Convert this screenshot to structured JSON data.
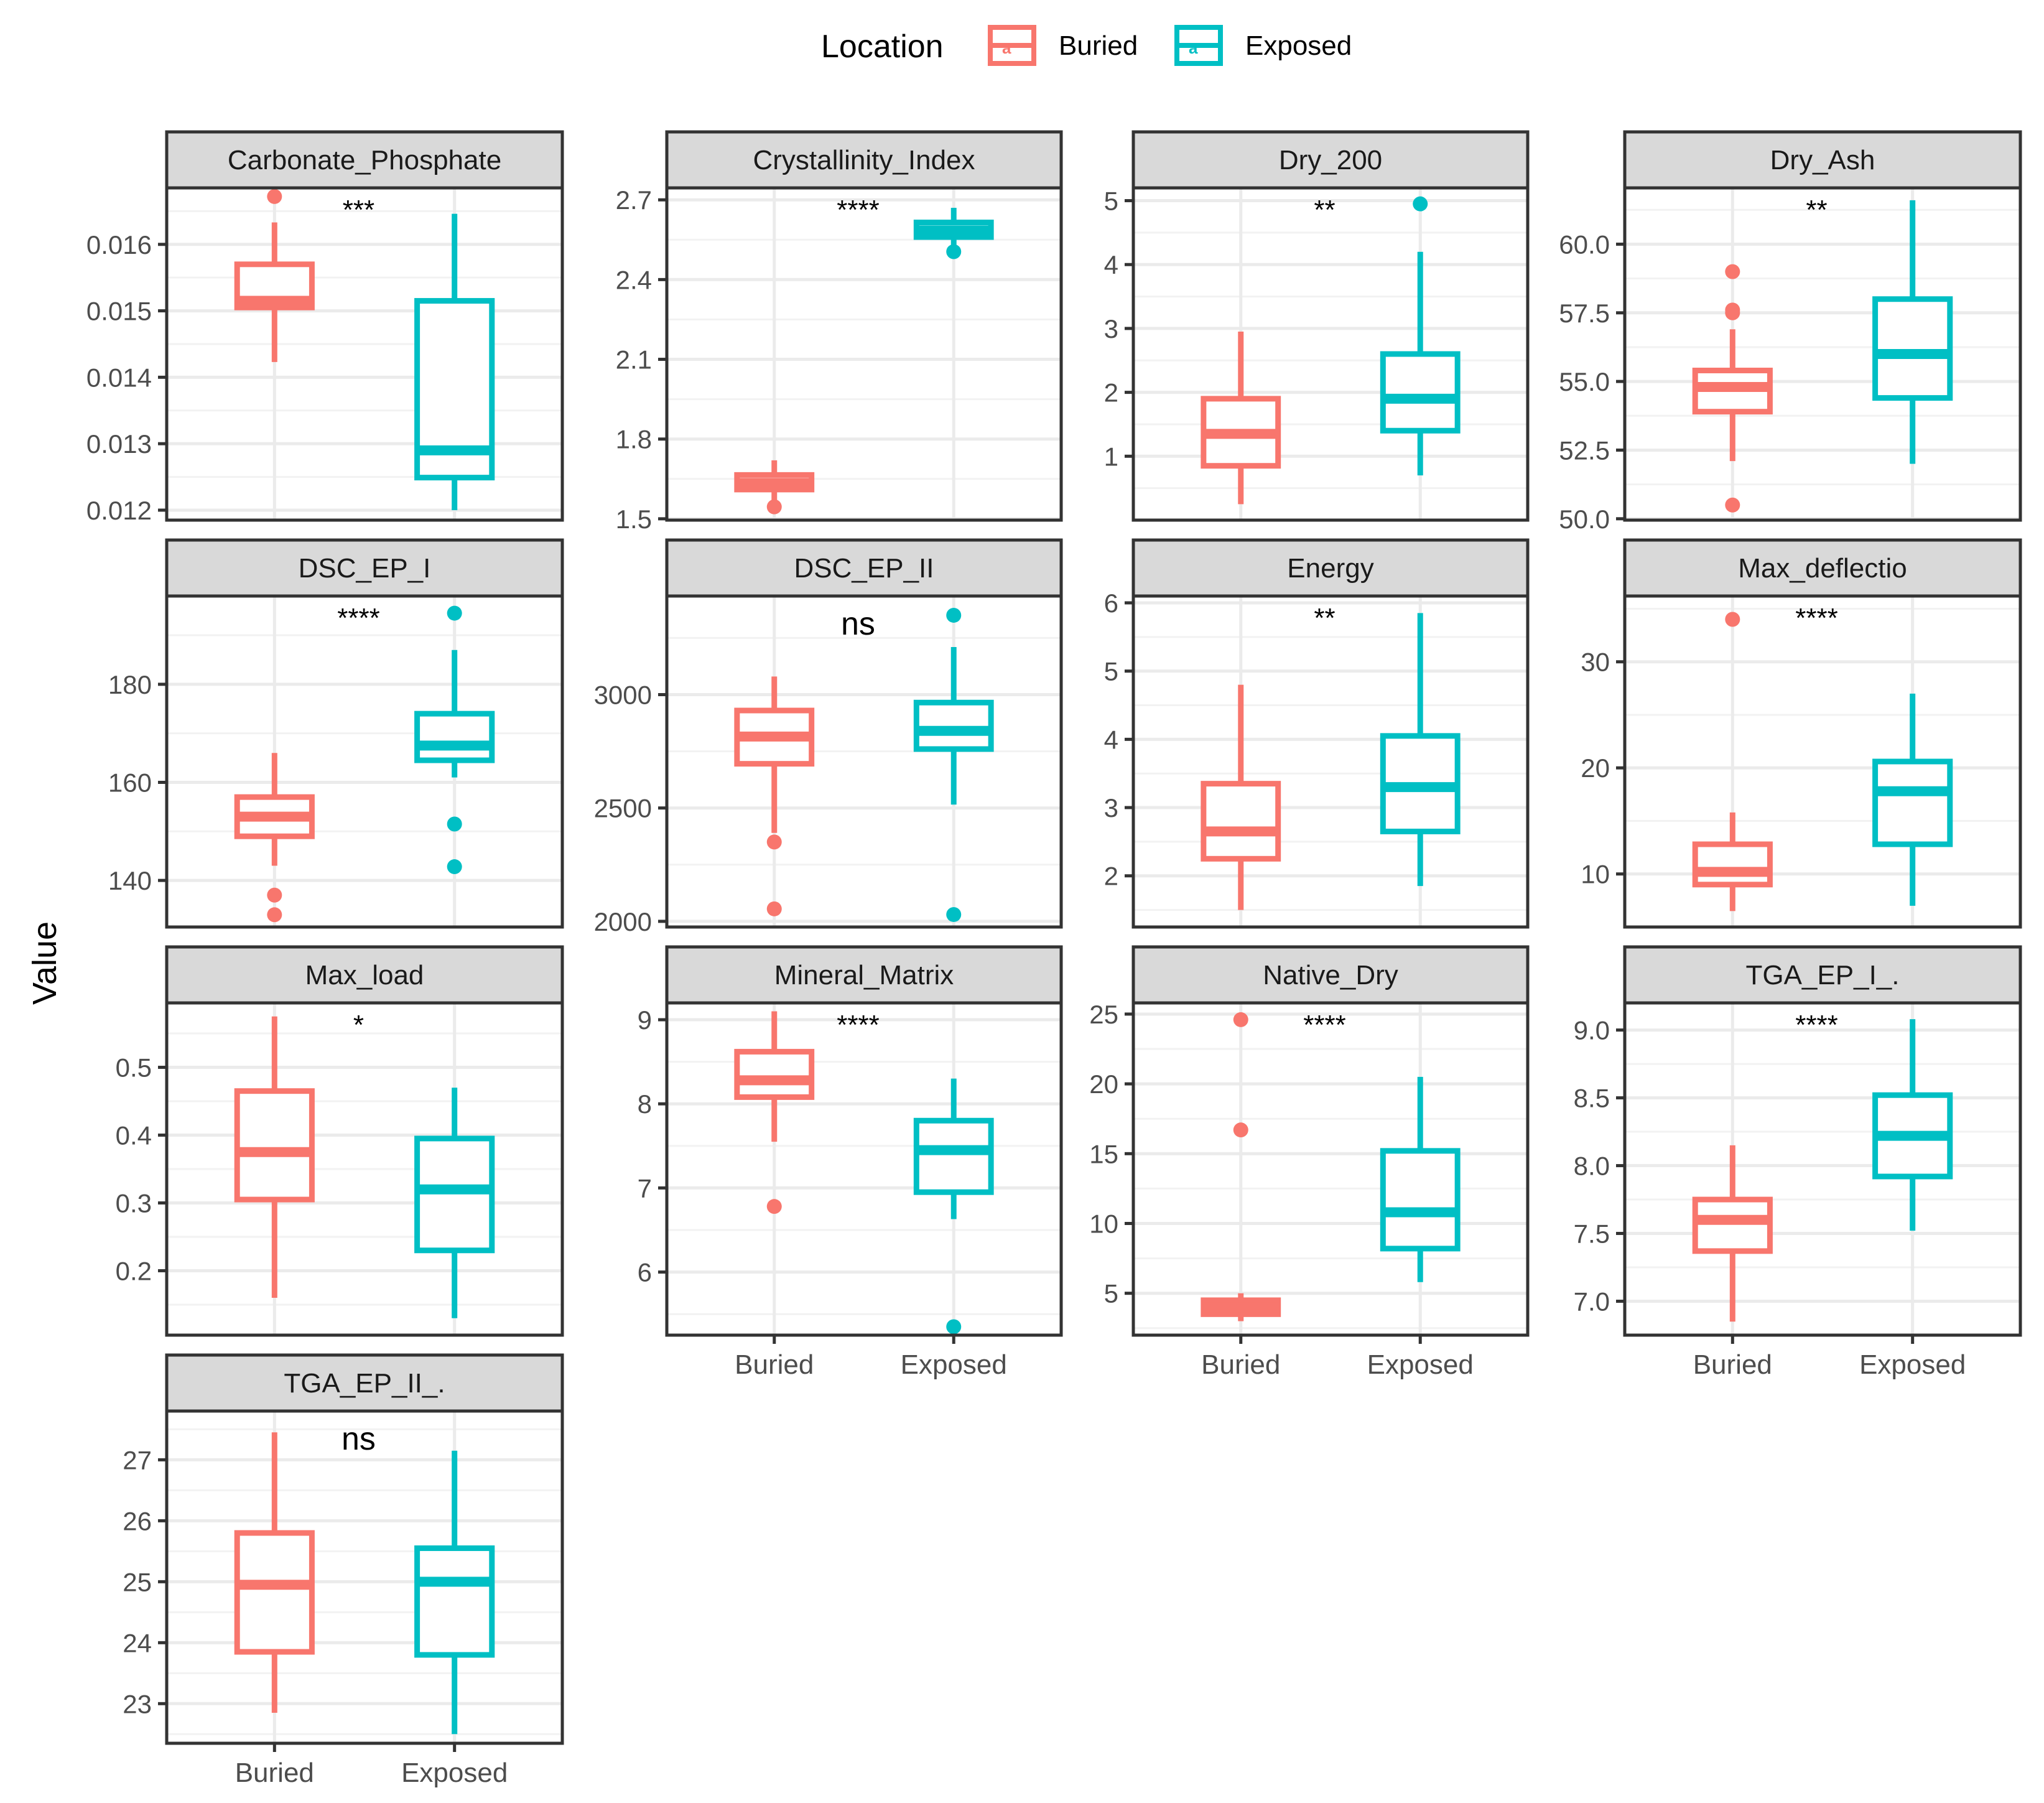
{
  "legend": {
    "title": "Location",
    "items": [
      {
        "label": "Buried",
        "color": "#F8766D"
      },
      {
        "label": "Exposed",
        "color": "#00BFC4"
      }
    ]
  },
  "y_axis_label": "Value",
  "chart_data": {
    "type": "boxplot",
    "categories": [
      "Buried",
      "Exposed"
    ],
    "colors": {
      "Buried": "#F8766D",
      "Exposed": "#00BFC4"
    },
    "panels": [
      {
        "title": "Carbonate_Phosphate",
        "significance": "***",
        "sig_size": "small",
        "ylim": [
          0.01185,
          0.01685
        ],
        "ticks": [
          0.012,
          0.013,
          0.014,
          0.015,
          0.016
        ],
        "tick_labels": [
          "0.012",
          "0.013",
          "0.014",
          "0.015",
          "0.016"
        ],
        "boxes": [
          {
            "group": "Buried",
            "whisker_low": 0.01423,
            "q1": 0.01505,
            "median": 0.01515,
            "q3": 0.0157,
            "whisker_high": 0.01633,
            "outliers": [
              0.01672
            ]
          },
          {
            "group": "Exposed",
            "whisker_low": 0.012,
            "q1": 0.01249,
            "median": 0.0129,
            "q3": 0.01515,
            "whisker_high": 0.01646,
            "outliers": []
          }
        ]
      },
      {
        "title": "Crystallinity_Index",
        "significance": "****",
        "sig_size": "small",
        "ylim": [
          1.495,
          2.745
        ],
        "ticks": [
          1.5,
          1.8,
          2.1,
          2.4,
          2.7
        ],
        "tick_labels": [
          "1.5",
          "1.8",
          "2.1",
          "2.4",
          "2.7"
        ],
        "boxes": [
          {
            "group": "Buried",
            "whisker_low": 1.55,
            "q1": 1.61,
            "median": 1.635,
            "q3": 1.665,
            "whisker_high": 1.72,
            "outliers": [
              1.545
            ]
          },
          {
            "group": "Exposed",
            "whisker_low": 2.51,
            "q1": 2.56,
            "median": 2.585,
            "q3": 2.615,
            "whisker_high": 2.67,
            "outliers": [
              2.505
            ]
          }
        ]
      },
      {
        "title": "Dry_200",
        "significance": "**",
        "sig_size": "small",
        "ylim": [
          0.0,
          5.2
        ],
        "ticks": [
          1,
          2,
          3,
          4,
          5
        ],
        "tick_labels": [
          "1",
          "2",
          "3",
          "4",
          "5"
        ],
        "boxes": [
          {
            "group": "Buried",
            "whisker_low": 0.25,
            "q1": 0.85,
            "median": 1.35,
            "q3": 1.9,
            "whisker_high": 2.95,
            "outliers": []
          },
          {
            "group": "Exposed",
            "whisker_low": 0.7,
            "q1": 1.4,
            "median": 1.9,
            "q3": 2.6,
            "whisker_high": 4.2,
            "outliers": [
              4.95
            ]
          }
        ]
      },
      {
        "title": "Dry_Ash",
        "significance": "**",
        "sig_size": "small",
        "ylim": [
          49.95,
          62.05
        ],
        "ticks": [
          50.0,
          52.5,
          55.0,
          57.5,
          60.0
        ],
        "tick_labels": [
          "50.0",
          "52.5",
          "55.0",
          "57.5",
          "60.0"
        ],
        "boxes": [
          {
            "group": "Buried",
            "whisker_low": 52.1,
            "q1": 53.9,
            "median": 54.8,
            "q3": 55.4,
            "whisker_high": 56.9,
            "outliers": [
              50.5,
              57.5,
              57.6,
              59.0
            ]
          },
          {
            "group": "Exposed",
            "whisker_low": 52.0,
            "q1": 54.4,
            "median": 56.0,
            "q3": 58.0,
            "whisker_high": 61.6,
            "outliers": []
          }
        ]
      },
      {
        "title": "DSC_EP_I",
        "significance": "****",
        "sig_size": "small",
        "ylim": [
          130.5,
          198.0
        ],
        "ticks": [
          140,
          160,
          180
        ],
        "tick_labels": [
          "140",
          "160",
          "180"
        ],
        "boxes": [
          {
            "group": "Buried",
            "whisker_low": 143.0,
            "q1": 149.0,
            "median": 153.0,
            "q3": 157.0,
            "whisker_high": 166.0,
            "outliers": [
              133.0,
              137.0
            ]
          },
          {
            "group": "Exposed",
            "whisker_low": 161.0,
            "q1": 164.5,
            "median": 167.5,
            "q3": 174.0,
            "whisker_high": 187.0,
            "outliers": [
              142.8,
              151.5,
              194.5
            ]
          }
        ]
      },
      {
        "title": "DSC_EP_II",
        "significance": "ns",
        "sig_size": "large",
        "ylim": [
          1975,
          3435
        ],
        "ticks": [
          2000,
          2500,
          3000
        ],
        "tick_labels": [
          "2000",
          "2500",
          "3000"
        ],
        "boxes": [
          {
            "group": "Buried",
            "whisker_low": 2390,
            "q1": 2695,
            "median": 2815,
            "q3": 2930,
            "whisker_high": 3080,
            "outliers": [
              2055,
              2350
            ]
          },
          {
            "group": "Exposed",
            "whisker_low": 2515,
            "q1": 2760,
            "median": 2840,
            "q3": 2965,
            "whisker_high": 3210,
            "outliers": [
              2030,
              3350
            ]
          }
        ]
      },
      {
        "title": "Energy",
        "significance": "**",
        "sig_size": "small",
        "ylim": [
          1.25,
          6.1
        ],
        "ticks": [
          2,
          3,
          4,
          5,
          6
        ],
        "tick_labels": [
          "2",
          "3",
          "4",
          "5",
          "6"
        ],
        "boxes": [
          {
            "group": "Buried",
            "whisker_low": 1.5,
            "q1": 2.25,
            "median": 2.65,
            "q3": 3.35,
            "whisker_high": 4.8,
            "outliers": []
          },
          {
            "group": "Exposed",
            "whisker_low": 1.85,
            "q1": 2.65,
            "median": 3.3,
            "q3": 4.05,
            "whisker_high": 5.85,
            "outliers": []
          }
        ]
      },
      {
        "title": "Max_deflectio",
        "significance": "****",
        "sig_size": "small",
        "ylim": [
          5.0,
          36.2
        ],
        "ticks": [
          10,
          20,
          30
        ],
        "tick_labels": [
          "10",
          "20",
          "30"
        ],
        "boxes": [
          {
            "group": "Buried",
            "whisker_low": 6.5,
            "q1": 9.0,
            "median": 10.2,
            "q3": 12.8,
            "whisker_high": 15.8,
            "outliers": [
              34.0
            ]
          },
          {
            "group": "Exposed",
            "whisker_low": 7.0,
            "q1": 12.8,
            "median": 17.8,
            "q3": 20.6,
            "whisker_high": 27.0,
            "outliers": []
          }
        ]
      },
      {
        "title": "Max_load",
        "significance": "*",
        "sig_size": "small",
        "ylim": [
          0.105,
          0.595
        ],
        "ticks": [
          0.2,
          0.3,
          0.4,
          0.5
        ],
        "tick_labels": [
          "0.2",
          "0.3",
          "0.4",
          "0.5"
        ],
        "boxes": [
          {
            "group": "Buried",
            "whisker_low": 0.16,
            "q1": 0.305,
            "median": 0.375,
            "q3": 0.465,
            "whisker_high": 0.575,
            "outliers": []
          },
          {
            "group": "Exposed",
            "whisker_low": 0.13,
            "q1": 0.23,
            "median": 0.32,
            "q3": 0.395,
            "whisker_high": 0.47,
            "outliers": []
          }
        ]
      },
      {
        "title": "Mineral_Matrix",
        "significance": "****",
        "sig_size": "small",
        "ylim": [
          5.25,
          9.2
        ],
        "ticks": [
          6,
          7,
          8,
          9
        ],
        "tick_labels": [
          "6",
          "7",
          "8",
          "9"
        ],
        "boxes": [
          {
            "group": "Buried",
            "whisker_low": 7.55,
            "q1": 8.08,
            "median": 8.28,
            "q3": 8.62,
            "whisker_high": 9.1,
            "outliers": [
              6.78
            ]
          },
          {
            "group": "Exposed",
            "whisker_low": 6.63,
            "q1": 6.95,
            "median": 7.45,
            "q3": 7.8,
            "whisker_high": 8.3,
            "outliers": [
              5.35
            ]
          }
        ]
      },
      {
        "title": "Native_Dry",
        "significance": "****",
        "sig_size": "small",
        "ylim": [
          2.0,
          25.8
        ],
        "ticks": [
          5,
          10,
          15,
          20,
          25
        ],
        "tick_labels": [
          "5",
          "10",
          "15",
          "20",
          "25"
        ],
        "boxes": [
          {
            "group": "Buried",
            "whisker_low": 3.0,
            "q1": 3.5,
            "median": 4.0,
            "q3": 4.5,
            "whisker_high": 5.0,
            "outliers": [
              16.7,
              24.6
            ]
          },
          {
            "group": "Exposed",
            "whisker_low": 5.8,
            "q1": 8.2,
            "median": 10.8,
            "q3": 15.2,
            "whisker_high": 20.5,
            "outliers": []
          }
        ]
      },
      {
        "title": "TGA_EP_I_.",
        "significance": "****",
        "sig_size": "small",
        "ylim": [
          6.75,
          9.2
        ],
        "ticks": [
          7.0,
          7.5,
          8.0,
          8.5,
          9.0
        ],
        "tick_labels": [
          "7.0",
          "7.5",
          "8.0",
          "8.5",
          "9.0"
        ],
        "boxes": [
          {
            "group": "Buried",
            "whisker_low": 6.85,
            "q1": 7.37,
            "median": 7.6,
            "q3": 7.75,
            "whisker_high": 8.15,
            "outliers": []
          },
          {
            "group": "Exposed",
            "whisker_low": 7.52,
            "q1": 7.92,
            "median": 8.22,
            "q3": 8.52,
            "whisker_high": 9.08,
            "outliers": []
          }
        ]
      },
      {
        "title": "TGA_EP_II_.",
        "significance": "ns",
        "sig_size": "large",
        "ylim": [
          22.35,
          27.8
        ],
        "ticks": [
          23,
          24,
          25,
          26,
          27
        ],
        "tick_labels": [
          "23",
          "24",
          "25",
          "26",
          "27"
        ],
        "boxes": [
          {
            "group": "Buried",
            "whisker_low": 22.85,
            "q1": 23.85,
            "median": 24.95,
            "q3": 25.8,
            "whisker_high": 27.45,
            "outliers": []
          },
          {
            "group": "Exposed",
            "whisker_low": 22.5,
            "q1": 23.8,
            "median": 25.0,
            "q3": 25.55,
            "whisker_high": 27.15,
            "outliers": []
          }
        ]
      }
    ]
  }
}
